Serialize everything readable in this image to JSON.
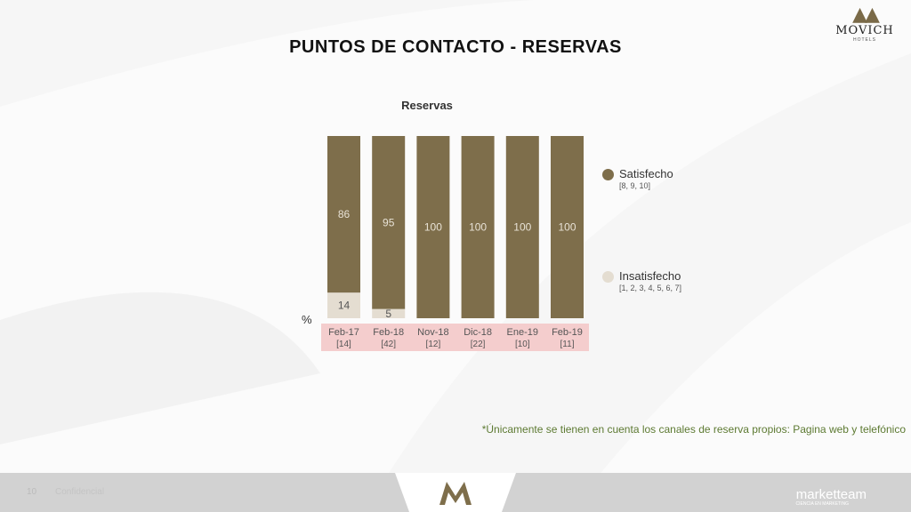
{
  "header": {
    "title": "PUNTOS DE CONTACTO - RESERVAS",
    "logo_name": "MOVICH",
    "logo_sub": "HOTELS"
  },
  "chart_data": {
    "type": "bar",
    "stacked": true,
    "title": "Reservas",
    "unit_label": "%",
    "categories": [
      "Feb-17",
      "Feb-18",
      "Nov-18",
      "Dic-18",
      "Ene-19",
      "Feb-19"
    ],
    "sample_sizes": [
      "[14]",
      "[42]",
      "[12]",
      "[22]",
      "[10]",
      "[11]"
    ],
    "series": [
      {
        "name": "Insatisfecho",
        "values": [
          14,
          5,
          0,
          0,
          0,
          0
        ],
        "color": "#e4ddd1"
      },
      {
        "name": "Satisfecho",
        "values": [
          86,
          95,
          100,
          100,
          100,
          100
        ],
        "color": "#7e6e4b"
      }
    ],
    "ylim": [
      0,
      100
    ],
    "legend_placement": "right",
    "category_band_color": "#f4cdcd"
  },
  "legend": [
    {
      "label": "Satisfecho",
      "sub": "[8, 9, 10]",
      "color": "#7e6e4b"
    },
    {
      "label": "Insatisfecho",
      "sub": "[1, 2, 3, 4, 5, 6, 7]",
      "color": "#e4ddd1"
    }
  ],
  "note": "*Únicamente se tienen en cuenta los canales de reserva propios: Pagina web y telefónico",
  "footer": {
    "page_number": "10",
    "confidential": "Confidencial",
    "brand": "marketteam",
    "brand_sub": "CIENCIA EN MARKETING"
  }
}
